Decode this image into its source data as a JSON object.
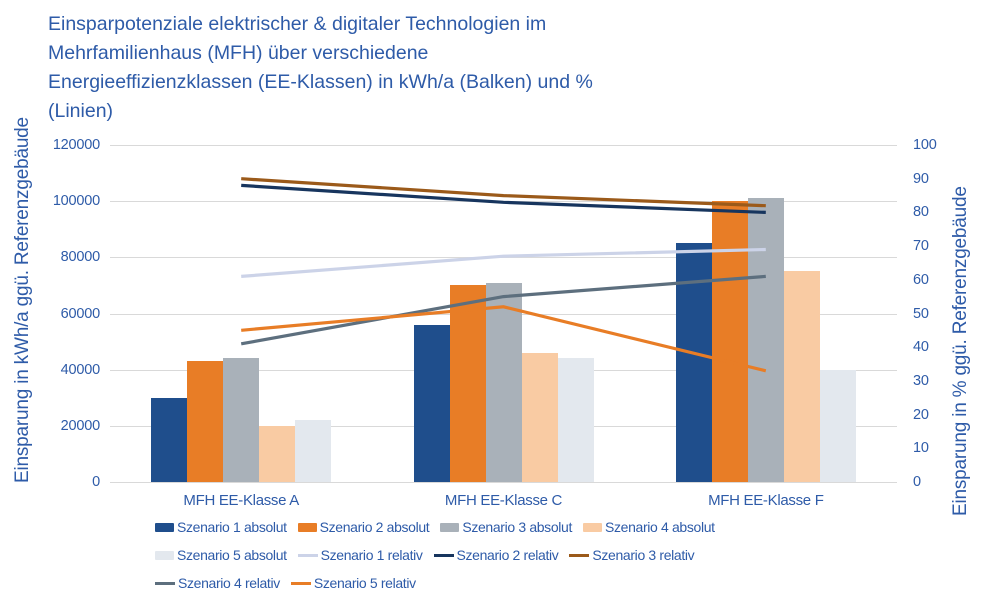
{
  "title": {
    "line1": "Einsparpotenziale elektrischer & digitaler Technologien im",
    "line2": "Mehrfamilienhaus (MFH) über verschiedene",
    "line3": "Energieeffizienzklassen (EE-Klassen) in kWh/a (Balken) und %",
    "line4": "(Linien)"
  },
  "colors": {
    "text": "#2e5ba8",
    "gridline": "#d9d9d9",
    "background": "#ffffff"
  },
  "chart_data": {
    "type": "bar+line",
    "title": "Einsparpotenziale elektrischer & digitaler Technologien im Mehrfamilienhaus (MFH) über verschiedene Energieeffizienzklassen (EE-Klassen) in kWh/a (Balken) und % (Linien)",
    "categories": [
      "MFH EE-Klasse A",
      "MFH EE-Klasse C",
      "MFH EE-Klasse F"
    ],
    "bar_series": [
      {
        "name": "Szenario 1 absolut",
        "color": "#1f4e8c",
        "values": [
          30000,
          56000,
          85000
        ]
      },
      {
        "name": "Szenario 2 absolut",
        "color": "#e87d26",
        "values": [
          43000,
          70000,
          100000
        ]
      },
      {
        "name": "Szenario 3 absolut",
        "color": "#a9b1b9",
        "values": [
          44000,
          71000,
          101000
        ]
      },
      {
        "name": "Szenario 4 absolut",
        "color": "#f9cba3",
        "values": [
          20000,
          46000,
          75000
        ]
      },
      {
        "name": "Szenario 5 absolut",
        "color": "#e3e8ee",
        "values": [
          22000,
          44000,
          40000
        ]
      }
    ],
    "line_series": [
      {
        "name": "Szenario 1 relativ",
        "color": "#ccd3e8",
        "values": [
          61,
          67,
          69
        ]
      },
      {
        "name": "Szenario 2 relativ",
        "color": "#17355e",
        "values": [
          88,
          83,
          80
        ]
      },
      {
        "name": "Szenario 3 relativ",
        "color": "#9b5a1a",
        "values": [
          90,
          85,
          82
        ]
      },
      {
        "name": "Szenario 4 relativ",
        "color": "#5d6f7e",
        "values": [
          41,
          55,
          61
        ]
      },
      {
        "name": "Szenario 5 relativ",
        "color": "#e87d26",
        "values": [
          45,
          52,
          33
        ]
      }
    ],
    "left_axis": {
      "title": "Einsparung in kWh/a ggü. Referenzgebäude",
      "min": 0,
      "max": 120000,
      "step": 20000
    },
    "right_axis": {
      "title": "Einsparung in % ggü. Referenzgebäude",
      "min": 0,
      "max": 100,
      "step": 10
    },
    "grid": true,
    "legend_position": "bottom"
  }
}
